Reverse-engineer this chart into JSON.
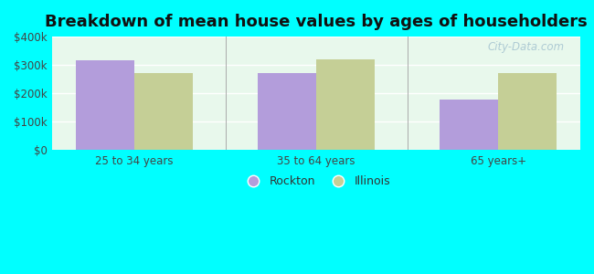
{
  "title": "Breakdown of mean house values by ages of householders",
  "categories": [
    "25 to 34 years",
    "35 to 64 years",
    "65 years+"
  ],
  "rockton_values": [
    315000,
    270000,
    178000
  ],
  "illinois_values": [
    270000,
    320000,
    270000
  ],
  "rockton_color": "#b39ddb",
  "illinois_color": "#c5cf96",
  "ylim": [
    0,
    400000
  ],
  "yticks": [
    0,
    100000,
    200000,
    300000,
    400000
  ],
  "ytick_labels": [
    "$0",
    "$100k",
    "$200k",
    "$300k",
    "$400k"
  ],
  "legend_labels": [
    "Rockton",
    "Illinois"
  ],
  "background_color": "#00ffff",
  "title_fontsize": 13,
  "bar_width": 0.32,
  "watermark": "City-Data.com"
}
